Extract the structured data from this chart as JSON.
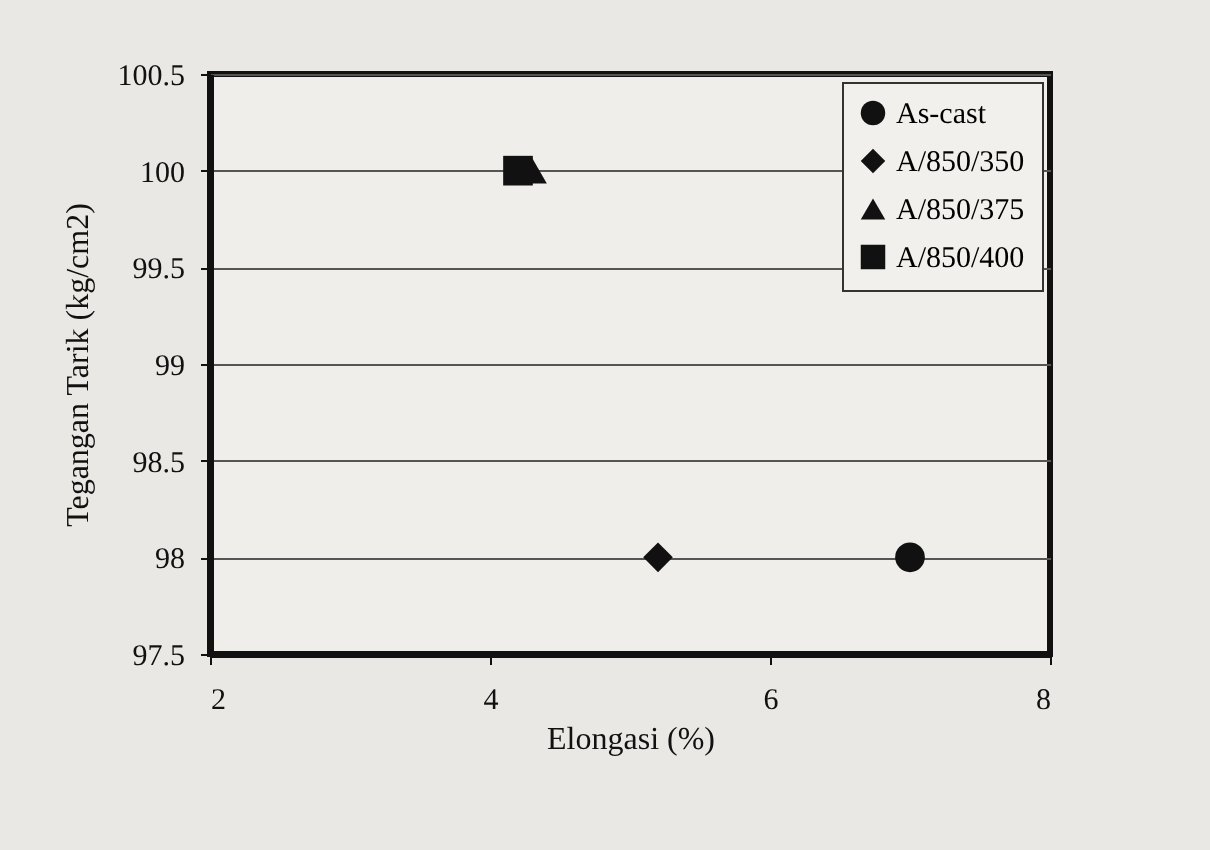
{
  "chart_data": {
    "type": "scatter",
    "xlabel": "Elongasi (%)",
    "ylabel": "Tegangan Tarik (kg/cm2)",
    "xlim": [
      2,
      8
    ],
    "xticks": [
      2,
      4,
      6,
      8
    ],
    "ylim": [
      97.5,
      100.5
    ],
    "yticks": [
      97.5,
      98,
      98.5,
      99,
      99.5,
      100,
      100.5
    ],
    "grid": "y",
    "legend": "top right",
    "series": [
      {
        "name": "As-cast",
        "color": "#111111",
        "marker": "circle",
        "x": [
          7.0
        ],
        "values": [
          98
        ]
      },
      {
        "name": "A/850/350",
        "color": "#111111",
        "marker": "diamond",
        "x": [
          5.2
        ],
        "values": [
          98
        ]
      },
      {
        "name": "A/850/375",
        "color": "#111111",
        "marker": "triangle",
        "x": [
          4.3
        ],
        "values": [
          100
        ]
      },
      {
        "name": "A/850/400",
        "color": "#111111",
        "marker": "square",
        "x": [
          4.2
        ],
        "values": [
          100
        ]
      }
    ]
  }
}
